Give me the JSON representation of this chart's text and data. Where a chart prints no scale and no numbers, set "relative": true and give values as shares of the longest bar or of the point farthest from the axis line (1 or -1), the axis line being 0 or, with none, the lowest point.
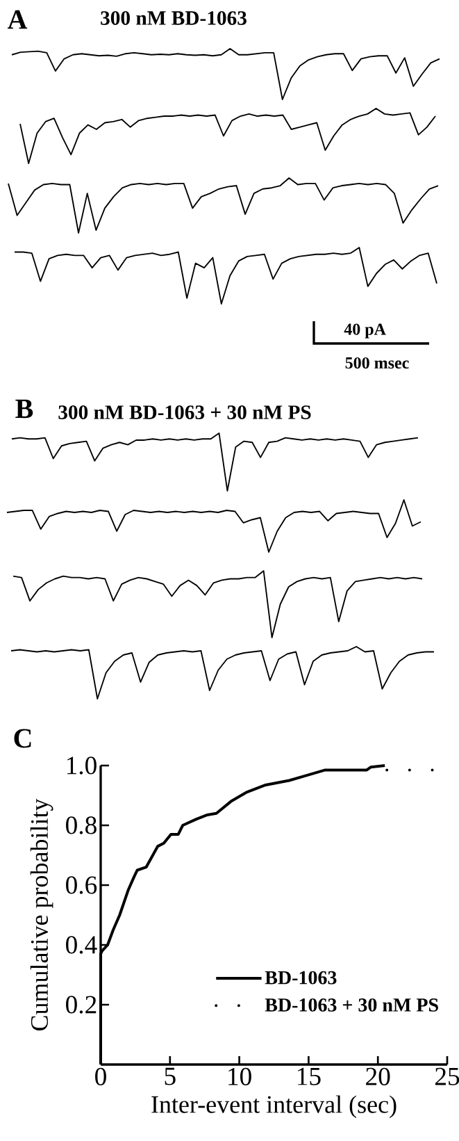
{
  "chart_data": [
    {
      "type": "line",
      "relative": true,
      "title": "300 nM BD-1063",
      "annotations": [
        "A"
      ],
      "color": "#000000",
      "categories": [
        null,
        null,
        null,
        null,
        null,
        null,
        null,
        null,
        null,
        null,
        null,
        null,
        null,
        null,
        null,
        null,
        null,
        null,
        null,
        null,
        null,
        null,
        null,
        null,
        null,
        null,
        null,
        null,
        null,
        null,
        null,
        null,
        null,
        null,
        null,
        null,
        null,
        null,
        null,
        null,
        null,
        null,
        null,
        null,
        null,
        null,
        null,
        null,
        null,
        null
      ],
      "values": [
        0.88,
        0.93,
        0.94,
        0.95,
        0.92,
        0.56,
        0.8,
        0.88,
        0.9,
        0.88,
        0.86,
        0.87,
        0.85,
        0.9,
        0.92,
        0.9,
        0.88,
        0.89,
        0.88,
        0.9,
        0.88,
        0.87,
        0.88,
        0.86,
        0.88,
        1,
        0.88,
        0.88,
        0.9,
        0.92,
        0.92,
        0,
        0.42,
        0.66,
        0.78,
        0.84,
        0.88,
        0.9,
        0.9,
        0.57,
        0.8,
        0.84,
        0.86,
        0.86,
        0.52,
        0.82,
        0.26,
        0.5,
        0.72,
        0.8
      ]
    },
    {
      "type": "line",
      "relative": true,
      "color": "#000000",
      "categories": [
        null,
        null,
        null,
        null,
        null,
        null,
        null,
        null,
        null,
        null,
        null,
        null,
        null,
        null,
        null,
        null,
        null,
        null,
        null,
        null,
        null,
        null,
        null,
        null,
        null,
        null,
        null,
        null,
        null,
        null,
        null,
        null,
        null,
        null,
        null,
        null,
        null,
        null,
        null,
        null,
        null,
        null,
        null,
        null,
        null,
        null,
        null,
        null,
        null,
        null
      ],
      "values": [
        0.72,
        0,
        0.55,
        0.76,
        0.82,
        0.47,
        0.16,
        0.55,
        0.7,
        0.62,
        0.74,
        0.76,
        0.8,
        0.66,
        0.78,
        0.82,
        0.84,
        0.86,
        0.86,
        0.88,
        0.86,
        0.88,
        0.86,
        0.88,
        0.5,
        0.78,
        0.86,
        0.9,
        0.86,
        0.88,
        0.86,
        0.88,
        0.62,
        0.66,
        0.7,
        0.74,
        0.24,
        0.5,
        0.7,
        0.8,
        0.86,
        0.9,
        1,
        0.9,
        0.88,
        0.9,
        0.92,
        0.52,
        0.66,
        0.86
      ]
    },
    {
      "type": "line",
      "relative": true,
      "color": "#000000",
      "categories": [
        null,
        null,
        null,
        null,
        null,
        null,
        null,
        null,
        null,
        null,
        null,
        null,
        null,
        null,
        null,
        null,
        null,
        null,
        null,
        null,
        null,
        null,
        null,
        null,
        null,
        null,
        null,
        null,
        null,
        null,
        null,
        null,
        null,
        null,
        null,
        null,
        null,
        null,
        null,
        null,
        null,
        null,
        null,
        null,
        null,
        null,
        null,
        null,
        null,
        null
      ],
      "values": [
        0.9,
        0.32,
        0.55,
        0.78,
        0.88,
        0.9,
        0.88,
        0.88,
        0,
        0.72,
        0.05,
        0.45,
        0.66,
        0.82,
        0.88,
        0.9,
        0.88,
        0.9,
        0.88,
        0.9,
        0.9,
        0.45,
        0.66,
        0.72,
        0.8,
        0.84,
        0.86,
        0.34,
        0.72,
        0.8,
        0.82,
        0.86,
        1,
        0.88,
        0.9,
        0.9,
        0.6,
        0.82,
        0.86,
        0.88,
        0.9,
        0.88,
        0.9,
        0.88,
        0.72,
        0.18,
        0.42,
        0.62,
        0.8,
        0.86
      ]
    },
    {
      "type": "line",
      "relative": true,
      "annotations": [
        "40 pA",
        "500 msec"
      ],
      "color": "#000000",
      "categories": [
        null,
        null,
        null,
        null,
        null,
        null,
        null,
        null,
        null,
        null,
        null,
        null,
        null,
        null,
        null,
        null,
        null,
        null,
        null,
        null,
        null,
        null,
        null,
        null,
        null,
        null,
        null,
        null,
        null,
        null,
        null,
        null,
        null,
        null,
        null,
        null,
        null,
        null,
        null,
        null,
        null,
        null,
        null,
        null,
        null,
        null,
        null,
        null,
        null,
        null
      ],
      "values": [
        0.92,
        0.92,
        0.9,
        0.4,
        0.8,
        0.86,
        0.88,
        0.86,
        0.86,
        0.64,
        0.82,
        0.86,
        0.6,
        0.82,
        0.86,
        0.88,
        0.9,
        0.86,
        0.88,
        0.92,
        0.1,
        0.72,
        0.64,
        0.82,
        0,
        0.5,
        0.76,
        0.84,
        0.86,
        0.88,
        0.44,
        0.72,
        0.8,
        0.84,
        0.86,
        0.88,
        0.88,
        0.9,
        0.88,
        0.9,
        1,
        0.31,
        0.54,
        0.7,
        0.78,
        0.62,
        0.76,
        0.86,
        0.9,
        0.36
      ]
    },
    {
      "type": "line",
      "relative": true,
      "title": "300 nM BD-1063 + 30 nM PS",
      "annotations": [
        "B"
      ],
      "color": "#000000",
      "categories": [
        null,
        null,
        null,
        null,
        null,
        null,
        null,
        null,
        null,
        null,
        null,
        null,
        null,
        null,
        null,
        null,
        null,
        null,
        null,
        null,
        null,
        null,
        null,
        null,
        null,
        null,
        null,
        null,
        null,
        null,
        null,
        null,
        null,
        null,
        null,
        null,
        null,
        null,
        null,
        null,
        null,
        null,
        null,
        null,
        null,
        null,
        null,
        null,
        null,
        null
      ],
      "values": [
        0.9,
        0.92,
        0.9,
        0.9,
        0.92,
        0.56,
        0.78,
        0.82,
        0.84,
        0.86,
        0.52,
        0.74,
        0.8,
        0.84,
        0.8,
        0.88,
        0.88,
        0.9,
        0.88,
        0.9,
        0.88,
        0.9,
        0.88,
        0.9,
        0.9,
        1,
        0,
        0.76,
        0.86,
        0.84,
        0.58,
        0.84,
        0.86,
        0.92,
        0.9,
        0.88,
        0.9,
        0.88,
        0.9,
        0.88,
        0.9,
        0.88,
        0.86,
        0.58,
        0.8,
        0.84,
        0.86,
        0.88,
        0.9,
        0.92
      ]
    },
    {
      "type": "line",
      "relative": true,
      "color": "#000000",
      "categories": [
        null,
        null,
        null,
        null,
        null,
        null,
        null,
        null,
        null,
        null,
        null,
        null,
        null,
        null,
        null,
        null,
        null,
        null,
        null,
        null,
        null,
        null,
        null,
        null,
        null,
        null,
        null,
        null,
        null,
        null,
        null,
        null,
        null,
        null,
        null,
        null,
        null,
        null,
        null,
        null,
        null,
        null,
        null,
        null,
        null,
        null,
        null,
        null,
        null,
        null
      ],
      "values": [
        0.76,
        0.78,
        0.8,
        0.8,
        0.44,
        0.68,
        0.74,
        0.78,
        0.76,
        0.78,
        0.76,
        0.8,
        0.78,
        0.4,
        0.72,
        0.8,
        0.78,
        0.76,
        0.78,
        0.76,
        0.78,
        0.76,
        0.78,
        0.76,
        0.78,
        0.76,
        0.8,
        0.78,
        0.56,
        0.62,
        0.66,
        0,
        0.4,
        0.66,
        0.76,
        0.78,
        0.76,
        0.78,
        0.6,
        0.74,
        0.76,
        0.78,
        0.76,
        0.74,
        0.74,
        0.28,
        0.55,
        1,
        0.5,
        0.58
      ]
    },
    {
      "type": "line",
      "relative": true,
      "color": "#000000",
      "categories": [
        null,
        null,
        null,
        null,
        null,
        null,
        null,
        null,
        null,
        null,
        null,
        null,
        null,
        null,
        null,
        null,
        null,
        null,
        null,
        null,
        null,
        null,
        null,
        null,
        null,
        null,
        null,
        null,
        null,
        null,
        null,
        null,
        null,
        null,
        null,
        null,
        null,
        null,
        null,
        null,
        null,
        null,
        null,
        null,
        null,
        null,
        null,
        null,
        null,
        null
      ],
      "values": [
        0.92,
        0.9,
        0.55,
        0.72,
        0.82,
        0.88,
        0.92,
        0.9,
        0.9,
        0.88,
        0.9,
        0.88,
        0.55,
        0.8,
        0.86,
        0.9,
        0.88,
        0.84,
        0.8,
        0.62,
        0.78,
        0.86,
        0.78,
        0.64,
        0.82,
        0.86,
        0.88,
        0.88,
        0.9,
        0.9,
        1,
        0,
        0.5,
        0.76,
        0.84,
        0.88,
        0.9,
        0.88,
        0.9,
        0.24,
        0.7,
        0.84,
        0.86,
        0.88,
        0.9,
        0.88,
        0.9,
        0.88,
        0.9,
        0.88
      ]
    },
    {
      "type": "line",
      "relative": true,
      "color": "#000000",
      "categories": [
        null,
        null,
        null,
        null,
        null,
        null,
        null,
        null,
        null,
        null,
        null,
        null,
        null,
        null,
        null,
        null,
        null,
        null,
        null,
        null,
        null,
        null,
        null,
        null,
        null,
        null,
        null,
        null,
        null,
        null,
        null,
        null,
        null,
        null,
        null,
        null,
        null,
        null,
        null,
        null,
        null,
        null,
        null,
        null,
        null,
        null,
        null,
        null,
        null,
        null
      ],
      "values": [
        0.92,
        0.94,
        0.92,
        0.9,
        0.92,
        0.9,
        0.92,
        0.94,
        0.92,
        0.94,
        0,
        0.5,
        0.72,
        0.84,
        0.88,
        0.32,
        0.7,
        0.84,
        0.88,
        0.9,
        0.92,
        0.9,
        0.92,
        0.16,
        0.55,
        0.76,
        0.84,
        0.88,
        0.9,
        0.92,
        0.35,
        0.76,
        0.86,
        0.9,
        0.27,
        0.72,
        0.84,
        0.88,
        0.9,
        0.92,
        1,
        0.9,
        0.92,
        0.19,
        0.5,
        0.72,
        0.84,
        0.88,
        0.9,
        0.9
      ]
    },
    {
      "type": "line",
      "annotations": [
        "C"
      ],
      "xlabel": "Inter-event interval (sec)",
      "ylabel": "Cumulative probability",
      "xlim": [
        0,
        25
      ],
      "ylim": [
        0,
        1
      ],
      "xticks": [
        0,
        5,
        10,
        15,
        20,
        25
      ],
      "yticks": [
        0.2,
        0.4,
        0.6,
        0.8,
        {
          "value": 1,
          "label": "1.0"
        }
      ],
      "legend": "bottom right",
      "series": [
        {
          "name": "BD-1063",
          "color": "#000000",
          "line_style": "solid",
          "x": [
            0,
            0,
            0.1,
            0.5,
            0.9,
            1.37,
            2.0,
            2.43,
            2.64,
            3.28,
            4.12,
            4.55,
            5.07,
            5.6,
            5.92,
            6.87,
            7.7,
            8.35,
            9.4,
            10.5,
            11.9,
            13.6,
            14.7,
            16.2,
            19.2,
            19.5,
            20.5
          ],
          "values": [
            0,
            0.37,
            0.38,
            0.4,
            0.45,
            0.5,
            0.585,
            0.63,
            0.65,
            0.66,
            0.73,
            0.74,
            0.77,
            0.77,
            0.8,
            0.82,
            0.835,
            0.84,
            0.88,
            0.91,
            0.935,
            0.95,
            0.965,
            0.985,
            0.985,
            0.995,
            1.0
          ]
        },
        {
          "name": "BD-1063 + 30 nM PS",
          "color": "#000000",
          "line_style": "dotted",
          "x": [
            20.65,
            23.95
          ],
          "values": [
            0.985,
            0.985
          ]
        }
      ]
    }
  ]
}
